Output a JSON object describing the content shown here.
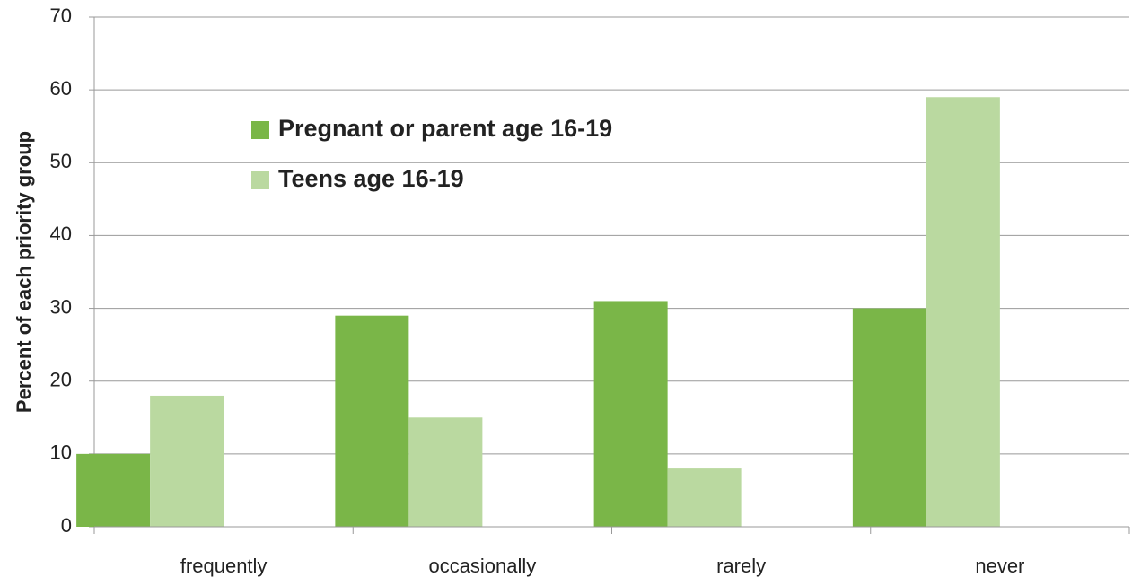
{
  "chart_data": {
    "type": "bar",
    "categories": [
      "frequently",
      "occasionally",
      "rarely",
      "never"
    ],
    "series": [
      {
        "name": "Pregnant or parent age 16-19",
        "color": "#7ab648",
        "values": [
          10,
          29,
          31,
          30
        ]
      },
      {
        "name": "Teens age 16-19",
        "color": "#bad9a0",
        "values": [
          18,
          15,
          8,
          59
        ]
      }
    ],
    "ylabel": "Percent of each priority group",
    "ylim": [
      0,
      70
    ],
    "yticks": [
      0,
      10,
      20,
      30,
      40,
      50,
      60,
      70
    ],
    "grid": true,
    "legend": "upper left"
  }
}
